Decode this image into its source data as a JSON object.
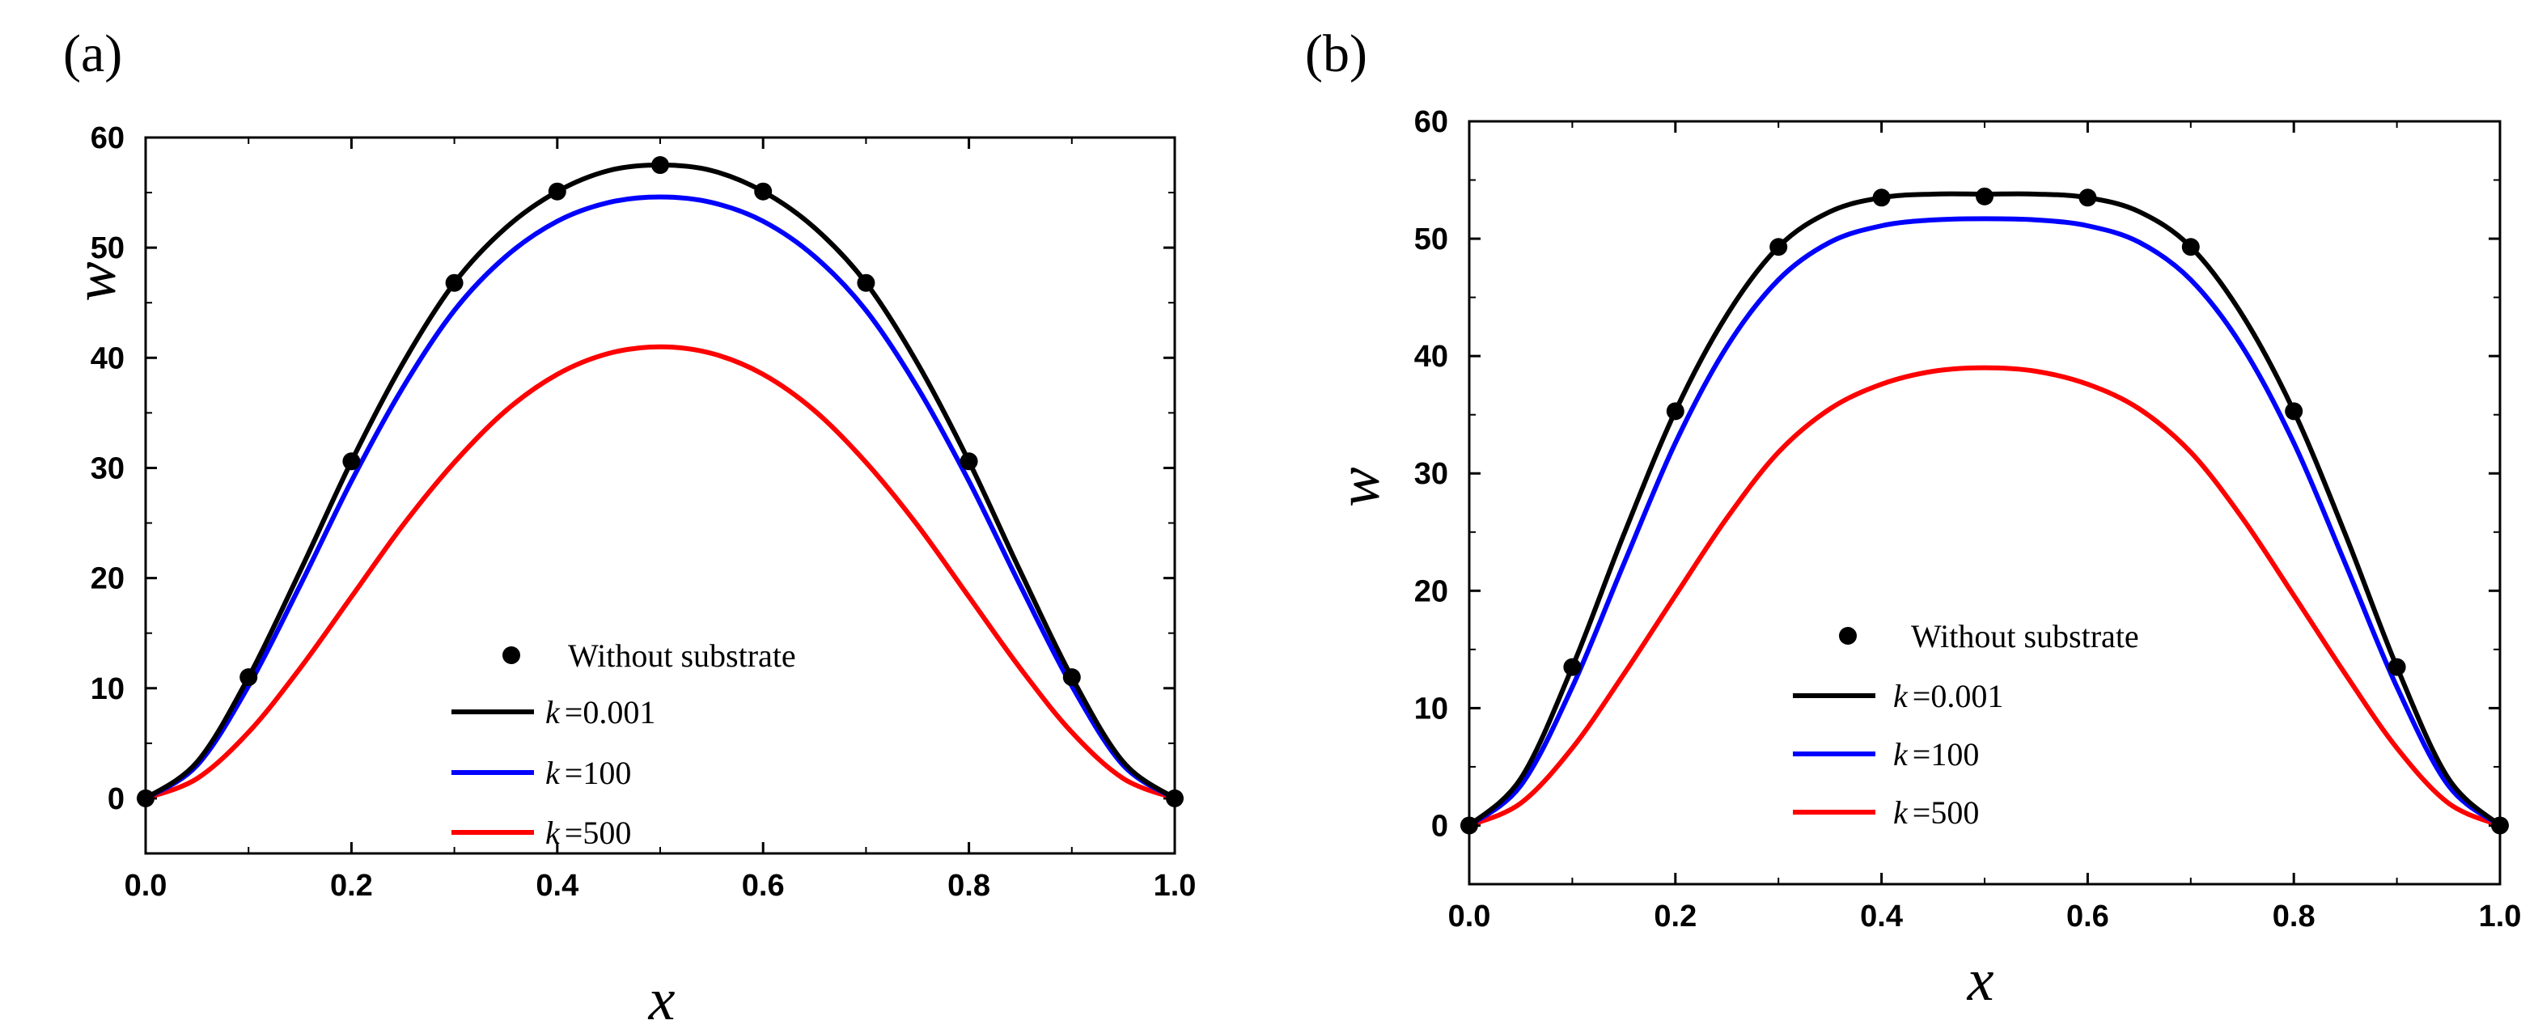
{
  "chart_data": [
    {
      "type": "line",
      "panel_label": "(a)",
      "xlabel": "x",
      "ylabel": "w",
      "xlim": [
        0.0,
        1.0
      ],
      "ylim": [
        -5,
        60
      ],
      "x_ticks": [
        "0.0",
        "0.2",
        "0.4",
        "0.6",
        "0.8",
        "1.0"
      ],
      "y_ticks": [
        "0",
        "10",
        "20",
        "30",
        "40",
        "50",
        "60"
      ],
      "legend_position": "bottom-center",
      "series": [
        {
          "name": "Without substrate",
          "style": "markers",
          "color": "#000000",
          "x": [
            0.0,
            0.1,
            0.2,
            0.3,
            0.4,
            0.5,
            0.6,
            0.7,
            0.8,
            0.9,
            1.0
          ],
          "y": [
            0.0,
            11.0,
            30.6,
            46.8,
            55.1,
            57.5,
            55.1,
            46.8,
            30.6,
            11.0,
            0.0
          ]
        },
        {
          "name": "k =0.001",
          "legend_prefix": "k",
          "legend_suffix": "=0.001",
          "style": "line",
          "color": "#000000",
          "x": [
            0.0,
            0.05,
            0.1,
            0.15,
            0.2,
            0.25,
            0.3,
            0.35,
            0.4,
            0.45,
            0.5,
            0.55,
            0.6,
            0.65,
            0.7,
            0.75,
            0.8,
            0.85,
            0.9,
            0.95,
            1.0
          ],
          "y": [
            0.0,
            3.3,
            11.0,
            20.6,
            30.6,
            39.5,
            46.8,
            51.8,
            55.1,
            57.0,
            57.5,
            57.0,
            55.1,
            51.8,
            46.8,
            39.5,
            30.6,
            20.6,
            11.0,
            3.3,
            0.0
          ]
        },
        {
          "name": "k =100",
          "legend_prefix": "k",
          "legend_suffix": "=100",
          "style": "line",
          "color": "#0000ff",
          "x": [
            0.0,
            0.05,
            0.1,
            0.15,
            0.2,
            0.25,
            0.3,
            0.35,
            0.4,
            0.45,
            0.5,
            0.55,
            0.6,
            0.65,
            0.7,
            0.75,
            0.8,
            0.85,
            0.9,
            0.95,
            1.0
          ],
          "y": [
            0.0,
            3.0,
            10.2,
            19.3,
            28.8,
            37.3,
            44.3,
            49.2,
            52.4,
            54.1,
            54.6,
            54.1,
            52.4,
            49.2,
            44.3,
            37.3,
            28.8,
            19.3,
            10.2,
            3.0,
            0.0
          ]
        },
        {
          "name": "k =500",
          "legend_prefix": "k",
          "legend_suffix": "=500",
          "style": "line",
          "color": "#ff0000",
          "x": [
            0.0,
            0.05,
            0.1,
            0.15,
            0.2,
            0.25,
            0.3,
            0.35,
            0.4,
            0.45,
            0.5,
            0.55,
            0.6,
            0.65,
            0.7,
            0.75,
            0.8,
            0.85,
            0.9,
            0.95,
            1.0
          ],
          "y": [
            0.0,
            1.8,
            6.0,
            11.8,
            18.3,
            24.8,
            30.5,
            35.2,
            38.5,
            40.4,
            41.0,
            40.4,
            38.5,
            35.2,
            30.5,
            24.8,
            18.3,
            11.8,
            6.0,
            1.8,
            0.0
          ]
        }
      ]
    },
    {
      "type": "line",
      "panel_label": "(b)",
      "xlabel": "x",
      "ylabel": "w",
      "xlim": [
        0.0,
        1.0
      ],
      "ylim": [
        -5,
        60
      ],
      "x_ticks": [
        "0.0",
        "0.2",
        "0.4",
        "0.6",
        "0.8",
        "1.0"
      ],
      "y_ticks": [
        "0",
        "10",
        "20",
        "30",
        "40",
        "50",
        "60"
      ],
      "legend_position": "bottom-center",
      "series": [
        {
          "name": "Without substrate",
          "style": "markers",
          "color": "#000000",
          "x": [
            0.0,
            0.1,
            0.2,
            0.3,
            0.4,
            0.5,
            0.6,
            0.7,
            0.8,
            0.9,
            1.0
          ],
          "y": [
            0.0,
            13.5,
            35.3,
            49.3,
            53.5,
            53.6,
            53.5,
            49.3,
            35.3,
            13.5,
            0.0
          ]
        },
        {
          "name": "k =0.001",
          "legend_prefix": "k",
          "legend_suffix": "=0.001",
          "style": "line",
          "color": "#000000",
          "x": [
            0.0,
            0.05,
            0.1,
            0.15,
            0.2,
            0.25,
            0.3,
            0.35,
            0.4,
            0.45,
            0.5,
            0.55,
            0.6,
            0.65,
            0.7,
            0.75,
            0.8,
            0.85,
            0.9,
            0.95,
            1.0
          ],
          "y": [
            0.0,
            4.0,
            13.5,
            24.8,
            35.3,
            43.5,
            49.3,
            52.3,
            53.5,
            53.8,
            53.8,
            53.8,
            53.5,
            52.3,
            49.3,
            43.5,
            35.3,
            24.8,
            13.5,
            4.0,
            0.0
          ]
        },
        {
          "name": "k =100",
          "legend_prefix": "k",
          "legend_suffix": "=100",
          "style": "line",
          "color": "#0000ff",
          "x": [
            0.0,
            0.05,
            0.1,
            0.15,
            0.2,
            0.25,
            0.3,
            0.35,
            0.4,
            0.45,
            0.5,
            0.55,
            0.6,
            0.65,
            0.7,
            0.75,
            0.8,
            0.85,
            0.9,
            0.95,
            1.0
          ],
          "y": [
            0.0,
            3.4,
            11.8,
            22.3,
            32.6,
            40.8,
            46.5,
            49.7,
            51.1,
            51.6,
            51.7,
            51.6,
            51.1,
            49.7,
            46.5,
            40.8,
            32.6,
            22.3,
            11.8,
            3.4,
            0.0
          ]
        },
        {
          "name": "k =500",
          "legend_prefix": "k",
          "legend_suffix": "=500",
          "style": "line",
          "color": "#ff0000",
          "x": [
            0.0,
            0.05,
            0.1,
            0.15,
            0.2,
            0.25,
            0.3,
            0.35,
            0.4,
            0.45,
            0.5,
            0.55,
            0.6,
            0.65,
            0.7,
            0.75,
            0.8,
            0.85,
            0.9,
            0.95,
            1.0
          ],
          "y": [
            0.0,
            1.9,
            6.6,
            12.9,
            19.6,
            26.2,
            31.8,
            35.5,
            37.6,
            38.7,
            39.0,
            38.7,
            37.6,
            35.5,
            31.8,
            26.2,
            19.6,
            12.9,
            6.6,
            1.9,
            0.0
          ]
        }
      ]
    }
  ]
}
